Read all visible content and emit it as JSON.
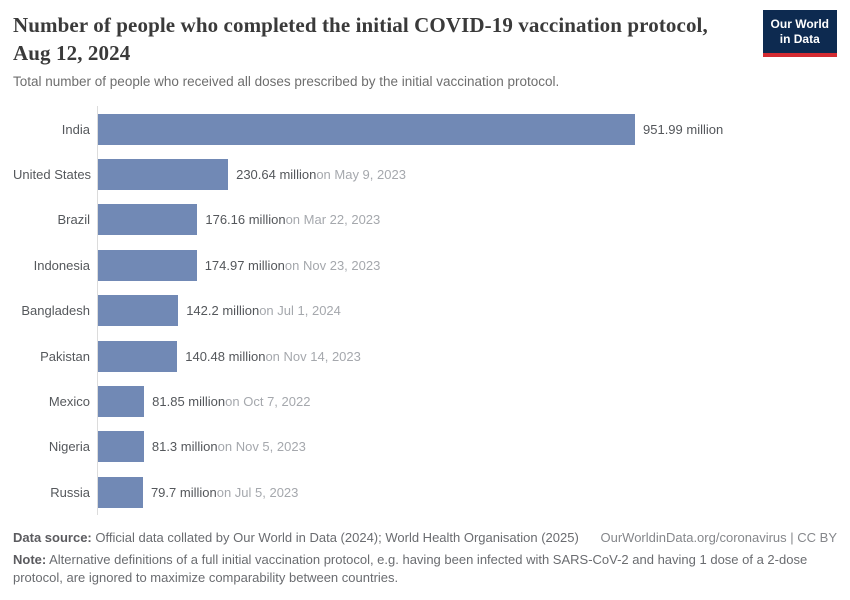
{
  "header": {
    "title": "Number of people who completed the initial COVID-19 vaccination protocol, Aug 12, 2024",
    "subtitle": "Total number of people who received all doses prescribed by the initial vaccination protocol.",
    "logo": {
      "line1": "Our World",
      "line2": "in Data"
    }
  },
  "chart_data": {
    "type": "bar",
    "orientation": "horizontal",
    "title": "Number of people who completed the initial COVID-19 vaccination protocol, Aug 12, 2024",
    "unit": "million",
    "xlim": [
      0,
      951.99
    ],
    "grid": false,
    "legend": "none",
    "bar_color": "#7189b5",
    "categories": [
      "India",
      "United States",
      "Brazil",
      "Indonesia",
      "Bangladesh",
      "Pakistan",
      "Mexico",
      "Nigeria",
      "Russia"
    ],
    "values": [
      951.99,
      230.64,
      176.16,
      174.97,
      142.2,
      140.48,
      81.85,
      81.3,
      79.7
    ],
    "value_labels": [
      "951.99 million",
      "230.64 million",
      "176.16 million",
      "174.97 million",
      "142.2 million",
      "140.48 million",
      "81.85 million",
      "81.3 million",
      "79.7 million"
    ],
    "date_labels": [
      "",
      "on May 9, 2023",
      "on Mar 22, 2023",
      "on Nov 23, 2023",
      "on Jul 1, 2024",
      "on Nov 14, 2023",
      "on Oct 7, 2022",
      "on Nov 5, 2023",
      "on Jul 5, 2023"
    ]
  },
  "footer": {
    "datasource_label": "Data source:",
    "datasource_text": " Official data collated by Our World in Data (2024); World Health Organisation (2025)",
    "license_text": "OurWorldinData.org/coronavirus | CC BY",
    "note_label": "Note:",
    "note_text": " Alternative definitions of a full initial vaccination protocol, e.g. having been infected with SARS-CoV-2 and having 1 dose of a 2-dose protocol, are ignored to maximize comparability between countries."
  }
}
